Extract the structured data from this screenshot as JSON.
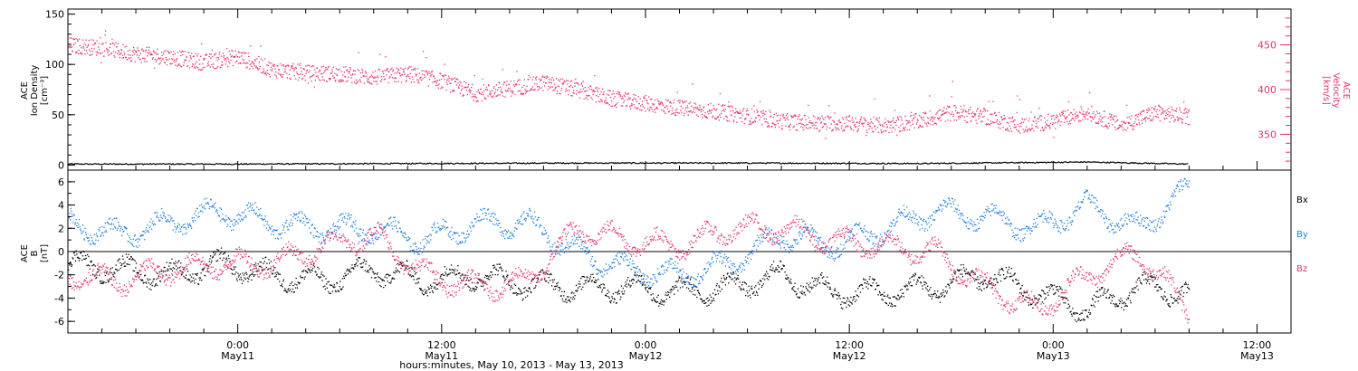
{
  "colors": {
    "density": "#000000",
    "velocity": "#e8336b",
    "bx": "#000000",
    "by": "#1f7fe0",
    "bz": "#e8336b"
  },
  "chart_data": [
    {
      "type": "scatter",
      "panel": "top",
      "ylabel_left": [
        "ACE",
        "Ion Density",
        "[cm⁻³]"
      ],
      "ylabel_right": [
        "ACE",
        "Velocity",
        "[km/s]"
      ],
      "ylim_left": [
        -5,
        155
      ],
      "yticks_left": [
        0,
        50,
        100,
        150
      ],
      "ylim_right": [
        310,
        490
      ],
      "yticks_right": [
        350,
        400,
        450
      ],
      "series": [
        {
          "axis": "left",
          "color": "#000000",
          "x": [
            0,
            10,
            20,
            30,
            40,
            50,
            60,
            66
          ],
          "y": [
            1,
            1,
            1.5,
            2,
            2,
            1.5,
            3,
            1
          ]
        },
        {
          "axis": "right",
          "color": "#e8336b",
          "x": [
            0,
            2,
            4,
            6,
            8,
            10,
            12,
            14,
            16,
            18,
            20,
            22,
            24,
            26,
            28,
            30,
            32,
            34,
            36,
            38,
            40,
            42,
            44,
            46,
            48,
            50,
            52,
            54,
            56,
            58,
            60,
            62,
            64,
            66
          ],
          "y": [
            450,
            447,
            440,
            437,
            431,
            437,
            423,
            419,
            418,
            414,
            418,
            410,
            396,
            402,
            408,
            400,
            390,
            385,
            380,
            376,
            371,
            365,
            363,
            363,
            360,
            365,
            375,
            370,
            360,
            365,
            375,
            360,
            375,
            370
          ]
        }
      ]
    },
    {
      "type": "scatter",
      "panel": "bottom",
      "ylabel": [
        "ACE",
        "B",
        "[nT]"
      ],
      "ylim": [
        -7,
        7
      ],
      "yticks": [
        -6,
        -4,
        -2,
        0,
        2,
        4,
        6
      ],
      "legend": [
        "Bx",
        "By",
        "Bz"
      ],
      "series": [
        {
          "name": "Bx",
          "color": "#000000",
          "x": [
            0,
            3,
            6,
            9,
            12,
            15,
            18,
            21,
            24,
            27,
            30,
            33,
            36,
            39,
            42,
            45,
            48,
            51,
            54,
            57,
            60,
            63,
            66
          ],
          "y": [
            -1,
            -1.5,
            -2,
            -1,
            -2,
            -2.5,
            -1.5,
            -2.5,
            -2,
            -2.8,
            -3,
            -3,
            -3.5,
            -3,
            -2,
            -3.5,
            -3.5,
            -3,
            -2,
            -3.5,
            -5,
            -3,
            -3.5
          ]
        },
        {
          "name": "By",
          "color": "#1f7fe0",
          "x": [
            0,
            3,
            6,
            9,
            12,
            15,
            18,
            21,
            24,
            27,
            30,
            33,
            36,
            39,
            42,
            45,
            48,
            51,
            54,
            57,
            60,
            63,
            66
          ],
          "y": [
            2.5,
            1.5,
            2.5,
            3.5,
            2.5,
            2,
            2,
            1,
            2.5,
            2.5,
            0,
            -1.5,
            -2,
            -1,
            1.5,
            0.5,
            2,
            3.5,
            3,
            2,
            4,
            2,
            5.5
          ]
        },
        {
          "name": "Bz",
          "color": "#e8336b",
          "x": [
            0,
            3,
            6,
            9,
            12,
            15,
            18,
            21,
            24,
            27,
            30,
            33,
            36,
            39,
            42,
            45,
            48,
            51,
            54,
            57,
            60,
            63,
            66
          ],
          "y": [
            -2,
            -2.5,
            -1.5,
            -1,
            -1,
            0.5,
            1.5,
            -2,
            -3,
            -2.5,
            2,
            1,
            0.5,
            2,
            2,
            1,
            0.5,
            0,
            -3,
            -5,
            -2,
            0,
            -5
          ]
        }
      ]
    }
  ],
  "x_axis": {
    "xlim": [
      0,
      72
    ],
    "ticks": [
      {
        "x": 10,
        "time": "0:00",
        "date": "May11"
      },
      {
        "x": 22,
        "time": "12:00",
        "date": "May11"
      },
      {
        "x": 34,
        "time": "0:00",
        "date": "May12"
      },
      {
        "x": 46,
        "time": "12:00",
        "date": "May12"
      },
      {
        "x": 58,
        "time": "0:00",
        "date": "May13"
      },
      {
        "x": 70,
        "time": "12:00",
        "date": "May13"
      }
    ],
    "title": "hours:minutes, May 10, 2013 - May 13, 2013"
  }
}
